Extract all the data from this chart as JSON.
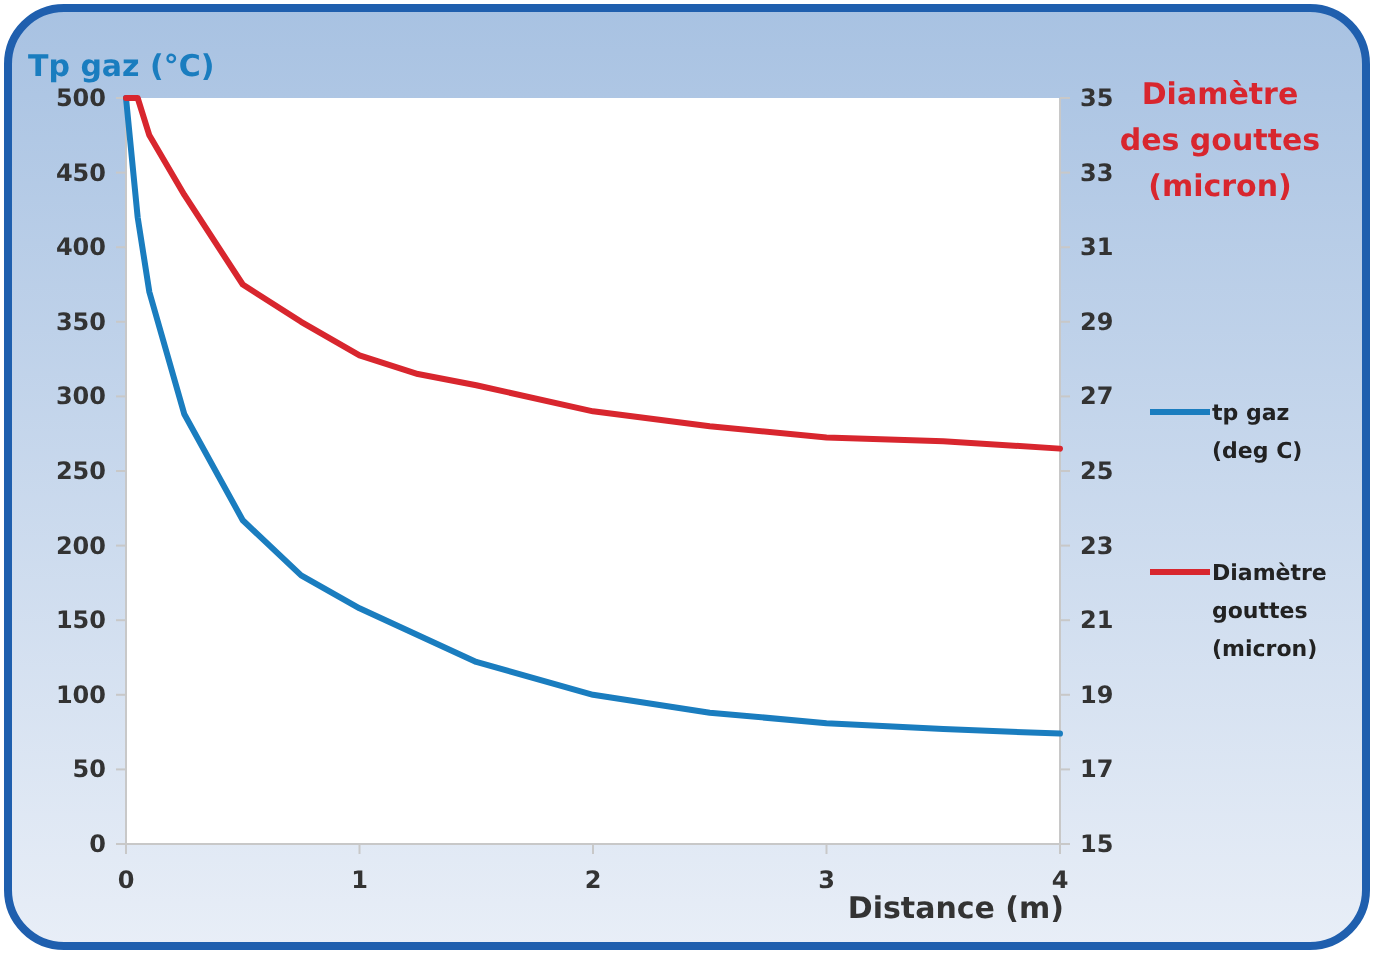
{
  "chart_data": {
    "type": "line",
    "xlabel": "Distance (m)",
    "ylabel": "Tp gaz (°C)",
    "y2label": "Diamètre des gouttes (micron)",
    "xlim": [
      0,
      4
    ],
    "xticks": [
      0,
      1,
      2,
      3,
      4
    ],
    "ylim": [
      0,
      500
    ],
    "yticks": [
      0,
      50,
      100,
      150,
      200,
      250,
      300,
      350,
      400,
      450,
      500
    ],
    "y2lim": [
      15,
      35
    ],
    "y2ticks": [
      15,
      17,
      19,
      21,
      23,
      25,
      27,
      29,
      31,
      33,
      35
    ],
    "legend": "right",
    "grid": false,
    "marker": "none",
    "line_style": "solid",
    "series": [
      {
        "name": "tp gaz (deg C)",
        "color": "#1a7dbf",
        "x": [
          0,
          0.05,
          0.1,
          0.25,
          0.5,
          0.75,
          1,
          1.5,
          2,
          2.5,
          3,
          3.5,
          4
        ],
        "values": [
          500,
          420,
          370,
          288,
          217,
          180,
          158,
          122,
          100,
          88,
          81,
          77,
          74
        ]
      },
      {
        "name": "Diamètre gouttes (micron)",
        "color": "#d8262e",
        "axis": "y2",
        "x": [
          0,
          0.05,
          0.1,
          0.25,
          0.5,
          0.75,
          1,
          1.25,
          1.5,
          2,
          2.5,
          3,
          3.5,
          4
        ],
        "values": [
          35,
          35,
          34,
          32.4,
          30,
          29,
          28.1,
          27.6,
          27.3,
          26.6,
          26.2,
          25.9,
          25.8,
          25.6
        ]
      }
    ]
  }
}
